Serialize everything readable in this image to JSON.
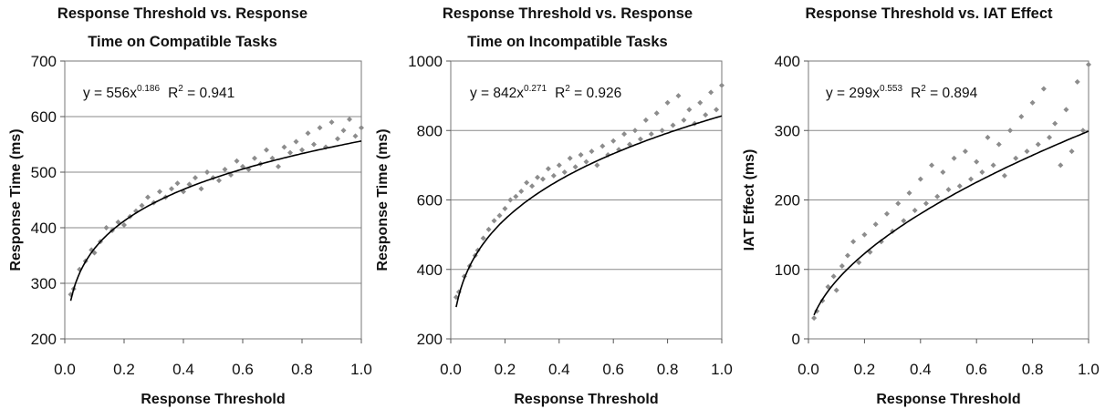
{
  "chart_data": [
    {
      "type": "scatter",
      "title": "Response Threshold vs. Response Time on Compatible Tasks",
      "title_lines": [
        "Response Threshold vs. Response",
        "Time on Compatible Tasks"
      ],
      "xlabel": "Response Threshold",
      "ylabel": "Response Time (ms)",
      "xlim": [
        0.0,
        1.0
      ],
      "ylim": [
        200,
        700
      ],
      "xticks": [
        "0.0",
        "0.2",
        "0.4",
        "0.6",
        "0.8",
        "1.0"
      ],
      "yticks": [
        "200",
        "300",
        "400",
        "500",
        "600",
        "700"
      ],
      "grid": "horizontal",
      "point_color": "#8c8c8c",
      "fit_color": "#000000",
      "trendline": {
        "model": "power",
        "a": 556,
        "b": 0.186,
        "r2": 0.941,
        "equation_base": "y = 556x",
        "equation_exp": "0.186",
        "r2_label": "R",
        "r2_exp": "2",
        "r2_value": " = 0.941"
      },
      "points": [
        [
          0.02,
          280
        ],
        [
          0.03,
          290
        ],
        [
          0.05,
          325
        ],
        [
          0.07,
          340
        ],
        [
          0.09,
          360
        ],
        [
          0.1,
          355
        ],
        [
          0.12,
          375
        ],
        [
          0.14,
          400
        ],
        [
          0.16,
          395
        ],
        [
          0.18,
          410
        ],
        [
          0.2,
          405
        ],
        [
          0.22,
          420
        ],
        [
          0.24,
          430
        ],
        [
          0.26,
          440
        ],
        [
          0.28,
          455
        ],
        [
          0.3,
          445
        ],
        [
          0.32,
          465
        ],
        [
          0.34,
          455
        ],
        [
          0.36,
          470
        ],
        [
          0.38,
          480
        ],
        [
          0.4,
          465
        ],
        [
          0.42,
          478
        ],
        [
          0.44,
          490
        ],
        [
          0.46,
          470
        ],
        [
          0.48,
          500
        ],
        [
          0.5,
          490
        ],
        [
          0.52,
          485
        ],
        [
          0.54,
          505
        ],
        [
          0.56,
          495
        ],
        [
          0.58,
          520
        ],
        [
          0.6,
          510
        ],
        [
          0.62,
          505
        ],
        [
          0.64,
          525
        ],
        [
          0.66,
          515
        ],
        [
          0.68,
          540
        ],
        [
          0.7,
          525
        ],
        [
          0.72,
          510
        ],
        [
          0.74,
          545
        ],
        [
          0.76,
          535
        ],
        [
          0.78,
          555
        ],
        [
          0.8,
          540
        ],
        [
          0.82,
          570
        ],
        [
          0.84,
          550
        ],
        [
          0.86,
          580
        ],
        [
          0.88,
          545
        ],
        [
          0.9,
          590
        ],
        [
          0.92,
          560
        ],
        [
          0.94,
          575
        ],
        [
          0.96,
          595
        ],
        [
          0.98,
          565
        ],
        [
          1.0,
          580
        ]
      ]
    },
    {
      "type": "scatter",
      "title": "Response Threshold vs. Response Time on Incompatible Tasks",
      "title_lines": [
        "Response Threshold vs. Response",
        "Time on Incompatible Tasks"
      ],
      "xlabel": "Response Threshold",
      "ylabel": "Response Time (ms)",
      "xlim": [
        0.0,
        1.0
      ],
      "ylim": [
        200,
        1000
      ],
      "xticks": [
        "0.0",
        "0.2",
        "0.4",
        "0.6",
        "0.8",
        "1.0"
      ],
      "yticks": [
        "200",
        "400",
        "600",
        "800",
        "1000"
      ],
      "grid": "horizontal",
      "point_color": "#8c8c8c",
      "fit_color": "#000000",
      "trendline": {
        "model": "power",
        "a": 842,
        "b": 0.271,
        "r2": 0.926,
        "equation_base": "y = 842x",
        "equation_exp": "0.271",
        "r2_label": "R",
        "r2_exp": "2",
        "r2_value": " = 0.926"
      },
      "points": [
        [
          0.02,
          320
        ],
        [
          0.03,
          335
        ],
        [
          0.05,
          380
        ],
        [
          0.07,
          410
        ],
        [
          0.09,
          440
        ],
        [
          0.1,
          455
        ],
        [
          0.12,
          490
        ],
        [
          0.14,
          515
        ],
        [
          0.16,
          540
        ],
        [
          0.18,
          555
        ],
        [
          0.2,
          575
        ],
        [
          0.22,
          600
        ],
        [
          0.24,
          610
        ],
        [
          0.26,
          625
        ],
        [
          0.28,
          650
        ],
        [
          0.3,
          640
        ],
        [
          0.32,
          665
        ],
        [
          0.34,
          660
        ],
        [
          0.36,
          690
        ],
        [
          0.38,
          670
        ],
        [
          0.4,
          700
        ],
        [
          0.42,
          680
        ],
        [
          0.44,
          720
        ],
        [
          0.46,
          695
        ],
        [
          0.48,
          730
        ],
        [
          0.5,
          710
        ],
        [
          0.52,
          740
        ],
        [
          0.54,
          700
        ],
        [
          0.56,
          755
        ],
        [
          0.58,
          730
        ],
        [
          0.6,
          770
        ],
        [
          0.62,
          745
        ],
        [
          0.64,
          790
        ],
        [
          0.66,
          760
        ],
        [
          0.68,
          800
        ],
        [
          0.7,
          775
        ],
        [
          0.72,
          830
        ],
        [
          0.74,
          790
        ],
        [
          0.76,
          850
        ],
        [
          0.78,
          800
        ],
        [
          0.8,
          880
        ],
        [
          0.82,
          815
        ],
        [
          0.84,
          900
        ],
        [
          0.86,
          830
        ],
        [
          0.88,
          860
        ],
        [
          0.9,
          820
        ],
        [
          0.92,
          880
        ],
        [
          0.94,
          845
        ],
        [
          0.96,
          910
        ],
        [
          0.98,
          860
        ],
        [
          1.0,
          930
        ]
      ]
    },
    {
      "type": "scatter",
      "title": "Response Threshold vs. IAT Effect",
      "title_lines": [
        "Response Threshold vs. IAT Effect"
      ],
      "xlabel": "Response Threshold",
      "ylabel": "IAT Effect (ms)",
      "xlim": [
        0.0,
        1.0
      ],
      "ylim": [
        0,
        400
      ],
      "xticks": [
        "0.0",
        "0.2",
        "0.4",
        "0.6",
        "0.8",
        "1.0"
      ],
      "yticks": [
        "0",
        "100",
        "200",
        "300",
        "400"
      ],
      "grid": "horizontal",
      "point_color": "#8c8c8c",
      "fit_color": "#000000",
      "trendline": {
        "model": "power",
        "a": 299,
        "b": 0.553,
        "r2": 0.894,
        "equation_base": "y = 299x",
        "equation_exp": "0.553",
        "r2_label": "R",
        "r2_exp": "2",
        "r2_value": " = 0.894"
      },
      "points": [
        [
          0.02,
          30
        ],
        [
          0.03,
          40
        ],
        [
          0.05,
          55
        ],
        [
          0.07,
          75
        ],
        [
          0.09,
          90
        ],
        [
          0.1,
          70
        ],
        [
          0.12,
          105
        ],
        [
          0.14,
          120
        ],
        [
          0.16,
          140
        ],
        [
          0.18,
          110
        ],
        [
          0.2,
          150
        ],
        [
          0.22,
          125
        ],
        [
          0.24,
          165
        ],
        [
          0.26,
          140
        ],
        [
          0.28,
          180
        ],
        [
          0.3,
          155
        ],
        [
          0.32,
          195
        ],
        [
          0.34,
          170
        ],
        [
          0.36,
          210
        ],
        [
          0.38,
          185
        ],
        [
          0.4,
          230
        ],
        [
          0.42,
          195
        ],
        [
          0.44,
          250
        ],
        [
          0.46,
          205
        ],
        [
          0.48,
          240
        ],
        [
          0.5,
          215
        ],
        [
          0.52,
          260
        ],
        [
          0.54,
          220
        ],
        [
          0.56,
          270
        ],
        [
          0.58,
          230
        ],
        [
          0.6,
          255
        ],
        [
          0.62,
          240
        ],
        [
          0.64,
          290
        ],
        [
          0.66,
          250
        ],
        [
          0.68,
          280
        ],
        [
          0.7,
          235
        ],
        [
          0.72,
          300
        ],
        [
          0.74,
          260
        ],
        [
          0.76,
          320
        ],
        [
          0.78,
          270
        ],
        [
          0.8,
          340
        ],
        [
          0.82,
          280
        ],
        [
          0.84,
          360
        ],
        [
          0.86,
          290
        ],
        [
          0.88,
          310
        ],
        [
          0.9,
          250
        ],
        [
          0.92,
          330
        ],
        [
          0.94,
          270
        ],
        [
          0.96,
          370
        ],
        [
          0.98,
          300
        ],
        [
          1.0,
          395
        ]
      ]
    }
  ]
}
